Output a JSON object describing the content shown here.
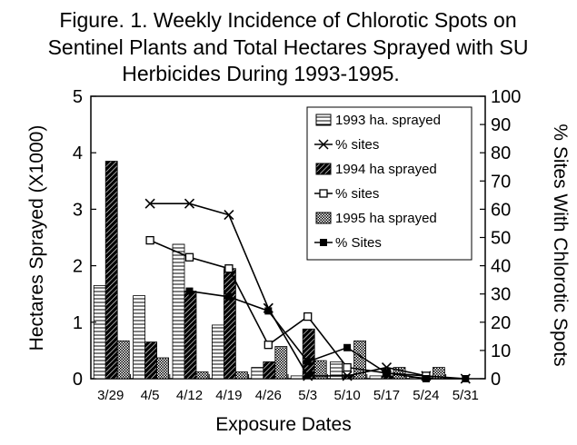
{
  "chart_data": {
    "type": "bar",
    "title_lines": [
      "Figure. 1.   Weekly Incidence of Chlorotic Spots on",
      "Sentinel Plants and Total Hectares Sprayed with SU",
      "Herbicides During 1993-1995."
    ],
    "xlabel": "Exposure Dates",
    "ylabel": "Hectares Sprayed (X1000)",
    "y2label": "% Sites With Chlorotic Spots",
    "categories": [
      "3/29",
      "4/5",
      "4/12",
      "4/19",
      "4/26",
      "5/3",
      "5/10",
      "5/17",
      "5/24",
      "5/31"
    ],
    "ylim": [
      0,
      5
    ],
    "yticks": [
      "0",
      "1",
      "2",
      "3",
      "4",
      "5"
    ],
    "y2lim": [
      0,
      100
    ],
    "y2ticks": [
      "0",
      "10",
      "20",
      "30",
      "40",
      "50",
      "60",
      "70",
      "80",
      "90",
      "100"
    ],
    "legend_position": "top-right",
    "bar_series": [
      {
        "name": "1993 ha. sprayed",
        "axis": "left",
        "pattern": "hstripe",
        "values": [
          1.65,
          1.47,
          2.38,
          0.95,
          0.2,
          0.05,
          0.3,
          0.05,
          0.02,
          0.0
        ]
      },
      {
        "name": "1994 ha sprayed",
        "axis": "left",
        "pattern": "diag",
        "values": [
          3.85,
          0.65,
          1.55,
          1.95,
          0.3,
          0.88,
          0.07,
          0.05,
          0.02,
          0.0
        ]
      },
      {
        "name": "1995 ha sprayed",
        "axis": "left",
        "pattern": "dots",
        "values": [
          0.67,
          0.37,
          0.12,
          0.12,
          0.57,
          0.32,
          0.67,
          0.2,
          0.2,
          0.0
        ]
      }
    ],
    "line_series": [
      {
        "name": "% sites",
        "axis": "right",
        "marker": "x",
        "values": [
          null,
          62,
          62,
          58,
          25,
          1,
          1,
          4,
          1,
          0
        ]
      },
      {
        "name": "% sites",
        "axis": "right",
        "marker": "open-square",
        "values": [
          null,
          49,
          43,
          39,
          12,
          22,
          4,
          2,
          1,
          null
        ]
      },
      {
        "name": "% Sites",
        "axis": "right",
        "marker": "filled-square",
        "values": [
          null,
          null,
          31,
          29,
          24,
          6,
          11,
          2,
          0,
          0
        ]
      }
    ]
  }
}
